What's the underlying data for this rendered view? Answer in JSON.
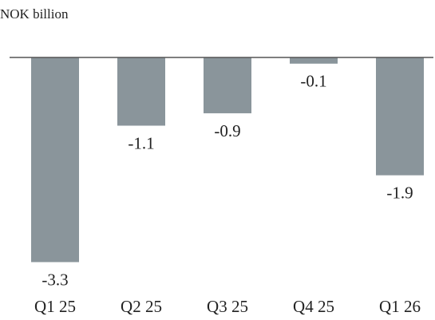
{
  "chart_data": {
    "type": "bar",
    "y_label": "NOK billion",
    "categories": [
      "Q1 25",
      "Q2 25",
      "Q3 25",
      "Q4 25",
      "Q1 26"
    ],
    "values": [
      -3.3,
      -1.1,
      -0.9,
      -0.1,
      -1.9
    ],
    "color": "#8a959b",
    "ylim": [
      -3.5,
      0
    ]
  }
}
